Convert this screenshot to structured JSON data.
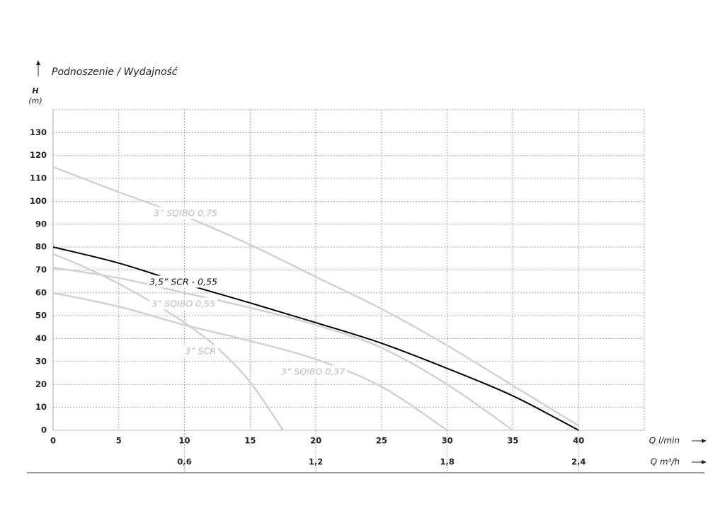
{
  "chart_data": {
    "type": "line",
    "title": "Podnoszenie / Wydajność",
    "y_label": "H",
    "y_unit": "(m)",
    "x_label": "Q l/min",
    "x2_label": "Q m³/h",
    "xlim": [
      0,
      45
    ],
    "xticks": [
      0,
      5,
      10,
      15,
      20,
      25,
      30,
      35,
      40
    ],
    "x2lim": [
      0,
      2.7
    ],
    "x2ticks": [
      {
        "value": 0.6,
        "label": "0,6"
      },
      {
        "value": 1.2,
        "label": "1,2"
      },
      {
        "value": 1.8,
        "label": "1,8"
      },
      {
        "value": 2.4,
        "label": "2,4"
      }
    ],
    "ylim": [
      0,
      140
    ],
    "yticks": [
      0,
      10,
      20,
      30,
      40,
      50,
      60,
      70,
      80,
      90,
      100,
      110,
      120,
      130
    ],
    "grid": true,
    "series": [
      {
        "name": "3” SQIBO 0,75",
        "color": "#d2d2d2",
        "x": [
          0,
          5,
          10,
          15,
          20,
          25,
          30,
          35,
          40
        ],
        "values": [
          115,
          104,
          93.5,
          81,
          67,
          53,
          37,
          19.5,
          2
        ]
      },
      {
        "name": "3,5” SCR - 0,55",
        "color": "#000000",
        "x": [
          0,
          5,
          10,
          15,
          20,
          25,
          30,
          35,
          40
        ],
        "values": [
          80,
          73,
          64,
          55.6,
          47,
          38,
          27,
          15,
          0
        ]
      },
      {
        "name": "3” SQIBO 0,55",
        "color": "#d2d2d2",
        "x": [
          0,
          5,
          10,
          15,
          20,
          25,
          30,
          35
        ],
        "values": [
          71,
          66.5,
          60,
          53.5,
          46,
          36,
          20,
          0
        ]
      },
      {
        "name": "3” SCR",
        "color": "#d2d2d2",
        "x": [
          0,
          2.5,
          5,
          7.5,
          10,
          12.5,
          15,
          17.5
        ],
        "values": [
          77,
          71,
          64,
          56,
          47,
          36,
          21,
          0
        ]
      },
      {
        "name": "3” SQIBO 0,37",
        "color": "#d2d2d2",
        "x": [
          0,
          5,
          10,
          15,
          20,
          25,
          30
        ],
        "values": [
          60,
          54,
          46,
          39,
          31,
          19,
          0
        ]
      }
    ]
  }
}
